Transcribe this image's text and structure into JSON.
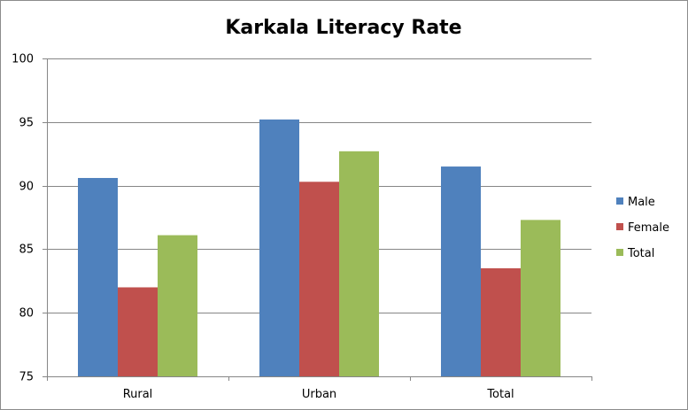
{
  "chart_data": {
    "type": "bar",
    "title": "Karkala Literacy Rate",
    "xlabel": "",
    "ylabel": "",
    "categories": [
      "Rural",
      "Urban",
      "Total"
    ],
    "ylim": [
      75,
      100
    ],
    "yticks": [
      75,
      80,
      85,
      90,
      95,
      100
    ],
    "grid": true,
    "legend_position": "right",
    "series": [
      {
        "name": "Male",
        "color": "#4f81bd",
        "values": [
          90.6,
          95.2,
          91.5
        ]
      },
      {
        "name": "Female",
        "color": "#c0504d",
        "values": [
          82.0,
          90.3,
          83.5
        ]
      },
      {
        "name": "Total",
        "color": "#9bbb59",
        "values": [
          86.1,
          92.7,
          87.3
        ]
      }
    ]
  }
}
